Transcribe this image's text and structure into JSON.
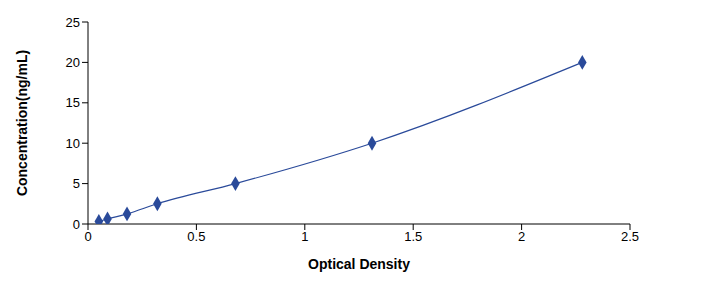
{
  "chart_data": {
    "type": "line",
    "x_label": "Optical Density",
    "y_label": "Concentration(ng/mL)",
    "x": [
      0.05,
      0.09,
      0.18,
      0.32,
      0.68,
      1.31,
      2.28
    ],
    "values": [
      0.313,
      0.625,
      1.25,
      2.5,
      5,
      10,
      20
    ],
    "color": "#2a4a9a",
    "marker": "diamond",
    "line_style": "smooth",
    "xlim": [
      0,
      2.5
    ],
    "xticks": [
      0,
      0.5,
      1,
      1.5,
      2,
      2.5
    ],
    "ylim": [
      0,
      25
    ],
    "yticks": [
      0,
      5,
      10,
      15,
      20,
      25
    ],
    "grid": false
  }
}
